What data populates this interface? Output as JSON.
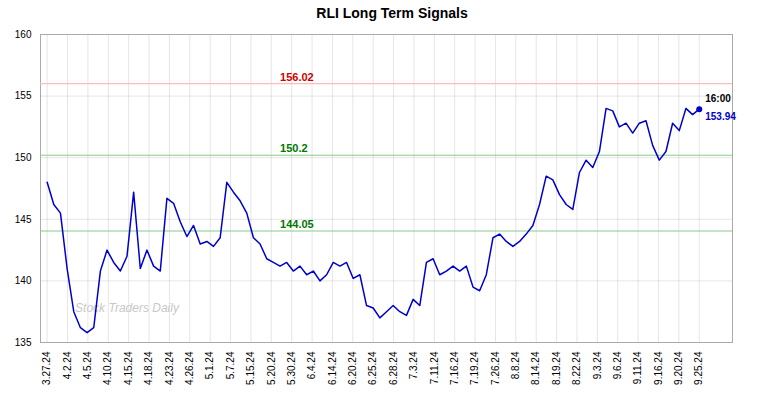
{
  "chart_data": {
    "type": "line",
    "title": "RLI Long Term Signals",
    "x": [
      0,
      1,
      2,
      3,
      4,
      5,
      6,
      7,
      8,
      9,
      10,
      11,
      12,
      13,
      14,
      15,
      16,
      17,
      18,
      19,
      20,
      21,
      22,
      23,
      24,
      25,
      26,
      27,
      28,
      29,
      30,
      31,
      32,
      33,
      34,
      35,
      36,
      37,
      38,
      39,
      40,
      41,
      42,
      43,
      44,
      45,
      46,
      47,
      48,
      49,
      50,
      51,
      52,
      53,
      54,
      55,
      56,
      57,
      58,
      59,
      60,
      61,
      62,
      63,
      64,
      65,
      66,
      67,
      68,
      69,
      70,
      71,
      72,
      73,
      74,
      75,
      76,
      77,
      78,
      79,
      80,
      81,
      82,
      83,
      84,
      85,
      86,
      87,
      88,
      89,
      90,
      91,
      92,
      93,
      94,
      95,
      96,
      97,
      98
    ],
    "values": [
      148.0,
      146.2,
      145.5,
      141.0,
      137.5,
      136.2,
      135.8,
      136.2,
      140.8,
      142.5,
      141.5,
      140.8,
      142.0,
      147.2,
      141.0,
      142.5,
      141.2,
      140.8,
      146.7,
      146.3,
      144.8,
      143.6,
      144.5,
      143.0,
      143.2,
      142.8,
      143.5,
      148.0,
      147.2,
      146.5,
      145.5,
      143.5,
      143.0,
      141.8,
      141.5,
      141.2,
      141.5,
      140.8,
      141.2,
      140.5,
      140.8,
      140.0,
      140.5,
      141.5,
      141.2,
      141.5,
      140.2,
      140.5,
      138.0,
      137.8,
      137.0,
      137.5,
      138.0,
      137.5,
      137.2,
      138.5,
      138.0,
      141.5,
      141.8,
      140.5,
      140.8,
      141.2,
      140.8,
      141.2,
      139.5,
      139.2,
      140.5,
      143.5,
      143.8,
      143.2,
      142.8,
      143.2,
      143.8,
      144.5,
      146.2,
      148.5,
      148.2,
      147.0,
      146.2,
      145.8,
      148.8,
      149.8,
      149.2,
      150.5,
      154.0,
      153.8,
      152.5,
      152.8,
      152.0,
      152.8,
      153.0,
      151.0,
      149.8,
      150.5,
      152.8,
      152.2,
      154.0,
      153.5,
      153.94
    ],
    "color": "#0000cc",
    "xlim": [
      -1,
      103
    ],
    "xticks": [
      {
        "value": 0,
        "label": "3.27.24"
      },
      {
        "value": 3.0625,
        "label": "4.2.24"
      },
      {
        "value": 6.125,
        "label": "4.5.24"
      },
      {
        "value": 9.1875,
        "label": "4.10.24"
      },
      {
        "value": 12.25,
        "label": "4.15.24"
      },
      {
        "value": 15.3125,
        "label": "4.18.24"
      },
      {
        "value": 18.375,
        "label": "4.23.24"
      },
      {
        "value": 21.4375,
        "label": "4.26.24"
      },
      {
        "value": 24.5,
        "label": "5.1.24"
      },
      {
        "value": 27.5625,
        "label": "5.7.24"
      },
      {
        "value": 30.625,
        "label": "5.15.24"
      },
      {
        "value": 33.6875,
        "label": "5.20.24"
      },
      {
        "value": 36.75,
        "label": "5.30.24"
      },
      {
        "value": 39.8125,
        "label": "6.4.24"
      },
      {
        "value": 42.875,
        "label": "6.14.24"
      },
      {
        "value": 45.9375,
        "label": "6.20.24"
      },
      {
        "value": 49,
        "label": "6.25.24"
      },
      {
        "value": 52.0625,
        "label": "6.28.24"
      },
      {
        "value": 55.125,
        "label": "7.3.24"
      },
      {
        "value": 58.1875,
        "label": "7.11.24"
      },
      {
        "value": 61.25,
        "label": "7.16.24"
      },
      {
        "value": 64.3125,
        "label": "7.19.24"
      },
      {
        "value": 67.375,
        "label": "7.26.24"
      },
      {
        "value": 70.4375,
        "label": "8.8.24"
      },
      {
        "value": 73.5,
        "label": "8.14.24"
      },
      {
        "value": 76.5625,
        "label": "8.19.24"
      },
      {
        "value": 79.625,
        "label": "8.22.24"
      },
      {
        "value": 82.6875,
        "label": "9.3.24"
      },
      {
        "value": 85.75,
        "label": "9.6.24"
      },
      {
        "value": 88.8125,
        "label": "9.11.24"
      },
      {
        "value": 91.875,
        "label": "9.16.24"
      },
      {
        "value": 94.9375,
        "label": "9.20.24"
      },
      {
        "value": 98,
        "label": "9.25.24"
      }
    ],
    "ylim": [
      135,
      160
    ],
    "yticks": [
      135,
      140,
      145,
      150,
      155,
      160
    ],
    "grid": true,
    "hlines": [
      {
        "y": 156.02,
        "label": "156.02",
        "color": "#ffbbbb",
        "label_color": "#cc0000"
      },
      {
        "y": 150.2,
        "label": "150.2",
        "color": "#88cc88",
        "label_color": "#007700"
      },
      {
        "y": 144.05,
        "label": "144.05",
        "color": "#88cc88",
        "label_color": "#007700"
      }
    ],
    "annotations": [
      {
        "text": "16:00"
      },
      {
        "text": "153.94",
        "color": "#0000cc"
      }
    ],
    "watermark": "Stock Traders Daily"
  }
}
